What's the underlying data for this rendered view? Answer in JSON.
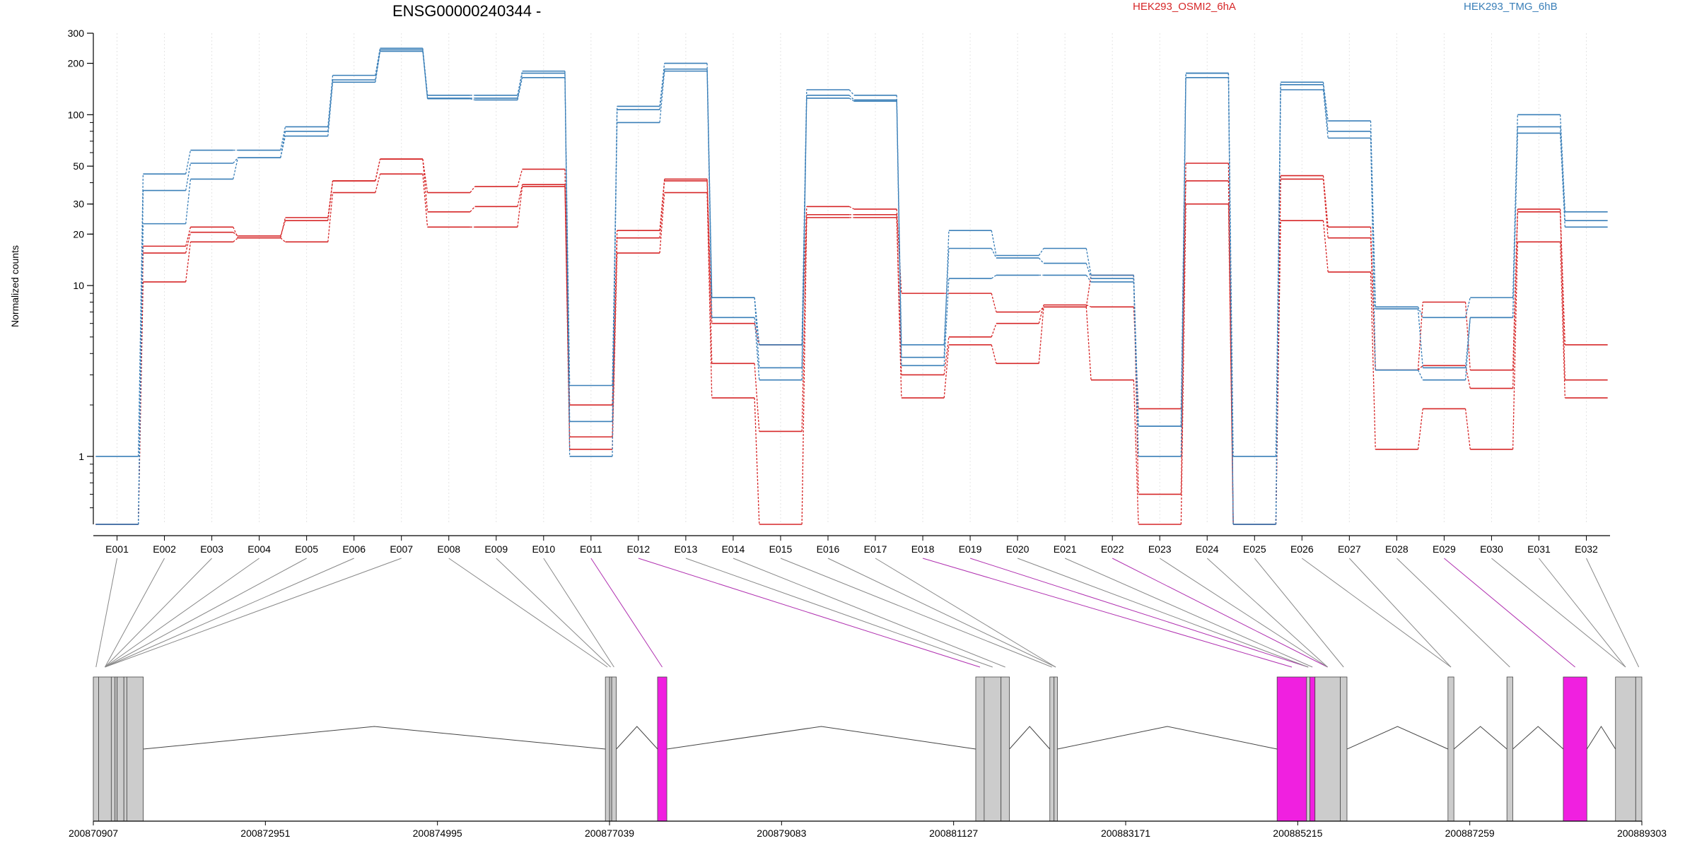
{
  "chart_data": {
    "type": "line",
    "title": "ENSG00000240344 -",
    "ylabel": "Normalized counts",
    "yscale": "log",
    "ylim": [
      0.4,
      300
    ],
    "yticks": [
      "300",
      "200",
      "100",
      "50",
      "30",
      "20",
      "10",
      "1"
    ],
    "ytick_values": [
      300,
      200,
      100,
      50,
      30,
      20,
      10,
      1
    ],
    "grid": "vertical dotted at exons",
    "legend_placement": "top",
    "colors": {
      "red": "#d62728",
      "blue": "#3a7fb8"
    },
    "categories": [
      "E001",
      "E002",
      "E003",
      "E004",
      "E005",
      "E006",
      "E007",
      "E008",
      "E009",
      "E010",
      "E011",
      "E012",
      "E013",
      "E014",
      "E015",
      "E016",
      "E017",
      "E018",
      "E019",
      "E020",
      "E021",
      "E022",
      "E023",
      "E024",
      "E025",
      "E026",
      "E027",
      "E028",
      "E029",
      "E030",
      "E031",
      "E032"
    ],
    "groups": [
      {
        "name": "HEK293_OSMI2_6hA",
        "color": "#d62728"
      },
      {
        "name": "HEK293_TMG_6hB",
        "color": "#3a7fb8"
      }
    ],
    "series": [
      {
        "group": 0,
        "values": [
          0.4,
          17,
          22,
          19,
          25,
          41,
          55,
          35,
          38,
          48,
          2,
          21,
          42,
          6,
          4.5,
          29,
          28,
          9,
          9,
          7,
          7.5,
          11.5,
          0.6,
          52,
          0.4,
          44,
          22,
          3.2,
          8,
          3.2,
          28,
          4.5
        ]
      },
      {
        "group": 0,
        "values": [
          0.4,
          15.5,
          20.5,
          19.5,
          24,
          41,
          55,
          27,
          29,
          39,
          1.3,
          19,
          41,
          3.5,
          1.4,
          26,
          26,
          3,
          5,
          6,
          7.7,
          7.5,
          1.9,
          41,
          0.4,
          42,
          19,
          3.2,
          3.4,
          2.5,
          27,
          2.8
        ]
      },
      {
        "group": 0,
        "values": [
          0.4,
          10.5,
          18,
          19,
          18,
          35,
          45,
          22,
          22,
          38,
          1.1,
          15.5,
          35,
          2.2,
          0.4,
          25,
          25,
          2.2,
          4.5,
          3.5,
          7.5,
          2.8,
          0.4,
          30,
          0.4,
          24,
          12,
          1.1,
          1.9,
          1.1,
          18,
          2.2
        ]
      },
      {
        "group": 1,
        "values": [
          1,
          45,
          62,
          62,
          85,
          170,
          245,
          130,
          130,
          180,
          1,
          112,
          200,
          8.5,
          4.5,
          140,
          130,
          3.8,
          21,
          15,
          16.5,
          11.5,
          1.5,
          175,
          1,
          155,
          92,
          7.5,
          6.5,
          8.5,
          100,
          27
        ]
      },
      {
        "group": 1,
        "values": [
          0.4,
          36,
          52,
          56,
          80,
          160,
          240,
          125,
          125,
          175,
          1.6,
          107,
          185,
          8.5,
          3.3,
          130,
          122,
          4.5,
          16.5,
          14.5,
          13.5,
          11,
          1.5,
          175,
          0.4,
          150,
          80,
          7.3,
          3.3,
          6.5,
          85,
          24
        ]
      },
      {
        "group": 1,
        "values": [
          0.4,
          23,
          42,
          56,
          75,
          155,
          235,
          124,
          122,
          165,
          2.6,
          90,
          180,
          6.5,
          2.8,
          125,
          120,
          3.4,
          11,
          11.5,
          11.5,
          10.5,
          1,
          165,
          0.4,
          140,
          73,
          3.2,
          2.8,
          6.5,
          78,
          22
        ]
      }
    ],
    "genome": {
      "start": 200870907,
      "end": 200889303,
      "ticks": [
        "200870907",
        "200872951",
        "200874995",
        "200877039",
        "200879083",
        "200881127",
        "200883171",
        "200885215",
        "200887259",
        "200889303"
      ],
      "tick_values": [
        200870907,
        200872951,
        200874995,
        200877039,
        200879083,
        200881127,
        200883171,
        200885215,
        200887259,
        200889303
      ],
      "highlight_color": "#f020e0",
      "exon_color": "#cccccc",
      "exons": [
        {
          "s": 200870907,
          "e": 200870970,
          "hl": false
        },
        {
          "s": 200870970,
          "e": 200871120,
          "hl": false
        },
        {
          "s": 200871120,
          "e": 200871165,
          "hl": false
        },
        {
          "s": 200871165,
          "e": 200871190,
          "hl": false
        },
        {
          "s": 200871190,
          "e": 200871270,
          "hl": false
        },
        {
          "s": 200871270,
          "e": 200871305,
          "hl": false
        },
        {
          "s": 200871305,
          "e": 200871500,
          "hl": false
        },
        {
          "s": 200876990,
          "e": 200877040,
          "hl": false
        },
        {
          "s": 200877040,
          "e": 200877065,
          "hl": false
        },
        {
          "s": 200877065,
          "e": 200877120,
          "hl": false
        },
        {
          "s": 200877610,
          "e": 200877720,
          "hl": true
        },
        {
          "s": 200881390,
          "e": 200881490,
          "hl": false
        },
        {
          "s": 200881490,
          "e": 200881690,
          "hl": false
        },
        {
          "s": 200881690,
          "e": 200881790,
          "hl": false
        },
        {
          "s": 200882270,
          "e": 200882320,
          "hl": false
        },
        {
          "s": 200882320,
          "e": 200882360,
          "hl": false
        },
        {
          "s": 200884970,
          "e": 200885320,
          "hl": true
        },
        {
          "s": 200885320,
          "e": 200885360,
          "hl": false
        },
        {
          "s": 200885360,
          "e": 200885420,
          "hl": true
        },
        {
          "s": 200885420,
          "e": 200885720,
          "hl": false
        },
        {
          "s": 200885720,
          "e": 200885800,
          "hl": false
        },
        {
          "s": 200887000,
          "e": 200887070,
          "hl": false
        },
        {
          "s": 200887700,
          "e": 200887770,
          "hl": false
        },
        {
          "s": 200888370,
          "e": 200888650,
          "hl": true
        },
        {
          "s": 200888990,
          "e": 200889230,
          "hl": false
        },
        {
          "s": 200889230,
          "e": 200889303,
          "hl": false
        }
      ],
      "bin_map": [
        0,
        1,
        1,
        1,
        1,
        1,
        1,
        7,
        8,
        9,
        10,
        11,
        12,
        13,
        14,
        15,
        15,
        16,
        17,
        17,
        18,
        19,
        19,
        19,
        20,
        21,
        21,
        22,
        23,
        24,
        24,
        25
      ],
      "bin_highlight": [
        10,
        11,
        17,
        18,
        21,
        28
      ]
    }
  }
}
